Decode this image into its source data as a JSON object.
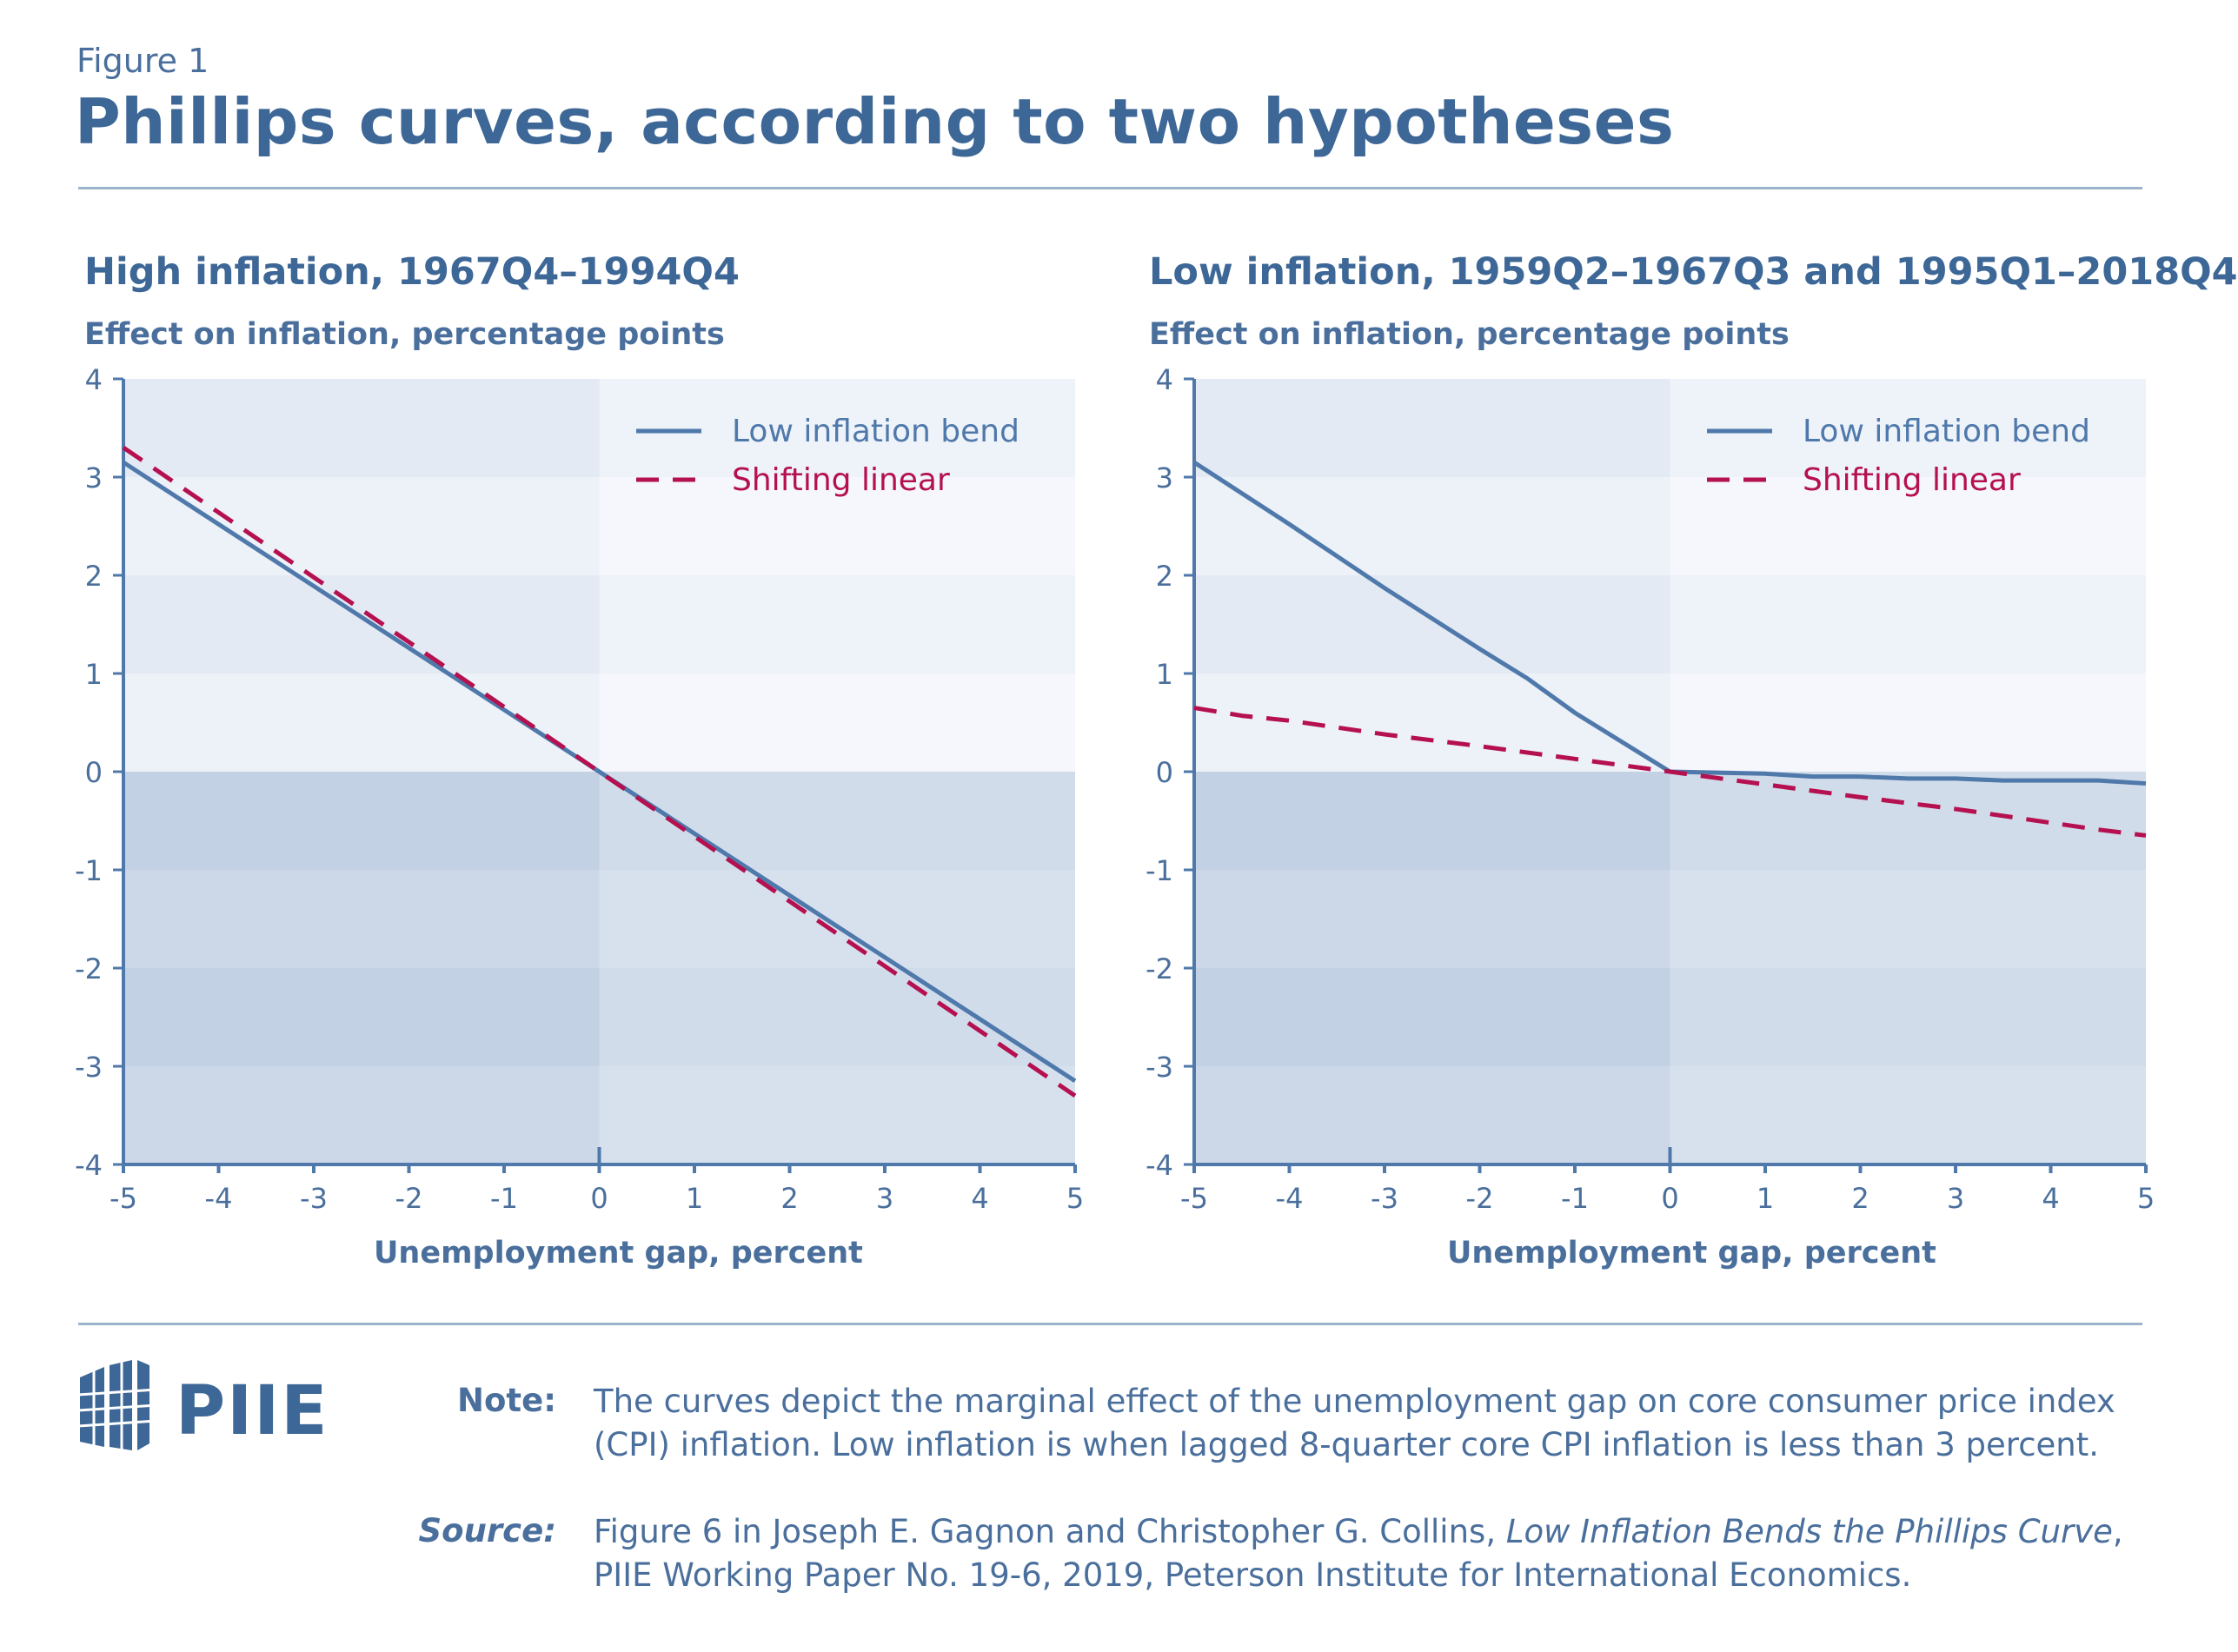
{
  "header": {
    "figure_label": "Figure 1",
    "title": "Phillips curves, according to two hypotheses"
  },
  "colors": {
    "low_inflation_bend": "#4f79ab",
    "shifting_linear": "#b5104f",
    "text": "#4a6f9c",
    "title": "#3d6796"
  },
  "chart_data": [
    {
      "type": "line",
      "title": "High inflation, 1967Q4–1994Q4",
      "ylabel": "Effect on inflation, percentage points",
      "xlabel": "Unemployment gap, percent",
      "xlim": [
        -5,
        5
      ],
      "ylim": [
        -4,
        4
      ],
      "xticks": [
        "-5",
        "-4",
        "-3",
        "-2",
        "-1",
        "0",
        "1",
        "2",
        "3",
        "4",
        "5"
      ],
      "yticks": [
        "4",
        "3",
        "2",
        "1",
        "0",
        "-1",
        "-2",
        "-3",
        "-4"
      ],
      "legend_position": "top-right",
      "series": [
        {
          "name": "Low inflation bend",
          "style": "solid",
          "x": [
            -5,
            -4,
            -3,
            -2,
            -1,
            0,
            1,
            2,
            3,
            4,
            5
          ],
          "y": [
            3.15,
            2.52,
            1.89,
            1.26,
            0.63,
            0.0,
            -0.63,
            -1.26,
            -1.89,
            -2.52,
            -3.15
          ]
        },
        {
          "name": "Shifting linear",
          "style": "dashed",
          "x": [
            -5,
            -4,
            -3,
            -2,
            -1,
            0,
            1,
            2,
            3,
            4,
            5
          ],
          "y": [
            3.3,
            2.64,
            1.98,
            1.32,
            0.66,
            0.0,
            -0.66,
            -1.32,
            -1.98,
            -2.64,
            -3.3
          ]
        }
      ]
    },
    {
      "type": "line",
      "title": "Low inflation, 1959Q2–1967Q3 and 1995Q1–2018Q4",
      "ylabel": "Effect on inflation, percentage points",
      "xlabel": "Unemployment gap, percent",
      "xlim": [
        -5,
        5
      ],
      "ylim": [
        -4,
        4
      ],
      "xticks": [
        "-5",
        "-4",
        "-3",
        "-2",
        "-1",
        "0",
        "1",
        "2",
        "3",
        "4",
        "5"
      ],
      "yticks": [
        "4",
        "3",
        "2",
        "1",
        "0",
        "-1",
        "-2",
        "-3",
        "-4"
      ],
      "legend_position": "top-right",
      "series": [
        {
          "name": "Low inflation bend",
          "style": "solid",
          "x": [
            -5,
            -4,
            -3,
            -2,
            -1.5,
            -1,
            -0.5,
            0,
            1,
            1.5,
            2,
            2.5,
            3,
            3.5,
            4,
            4.5,
            5
          ],
          "y": [
            3.15,
            2.52,
            1.87,
            1.25,
            0.95,
            0.6,
            0.3,
            0.0,
            -0.02,
            -0.05,
            -0.05,
            -0.07,
            -0.07,
            -0.09,
            -0.09,
            -0.09,
            -0.12
          ]
        },
        {
          "name": "Shifting linear",
          "style": "dashed",
          "x": [
            -5,
            -4.5,
            -4,
            -3,
            -2,
            -1,
            0,
            1,
            2,
            3,
            4,
            4.5,
            5
          ],
          "y": [
            0.65,
            0.57,
            0.52,
            0.38,
            0.26,
            0.13,
            0.0,
            -0.13,
            -0.26,
            -0.38,
            -0.52,
            -0.59,
            -0.65
          ]
        }
      ]
    }
  ],
  "footer": {
    "logo_text": "PIIE",
    "note_label": "Note:",
    "note_text": "The curves depict the marginal effect of the unemployment gap on core consumer price index (CPI) inflation. Low inflation is when lagged 8-quarter core CPI inflation is less than 3 percent.",
    "source_label": "Source:",
    "source_prefix": "Figure 6 in Joseph E. Gagnon and Christopher G. Collins,",
    "source_title": "Low Inflation Bends the Phillips Curve",
    "source_suffix": ", PIIE Working Paper No. 19-6, 2019, Peterson Institute for International Economics."
  }
}
